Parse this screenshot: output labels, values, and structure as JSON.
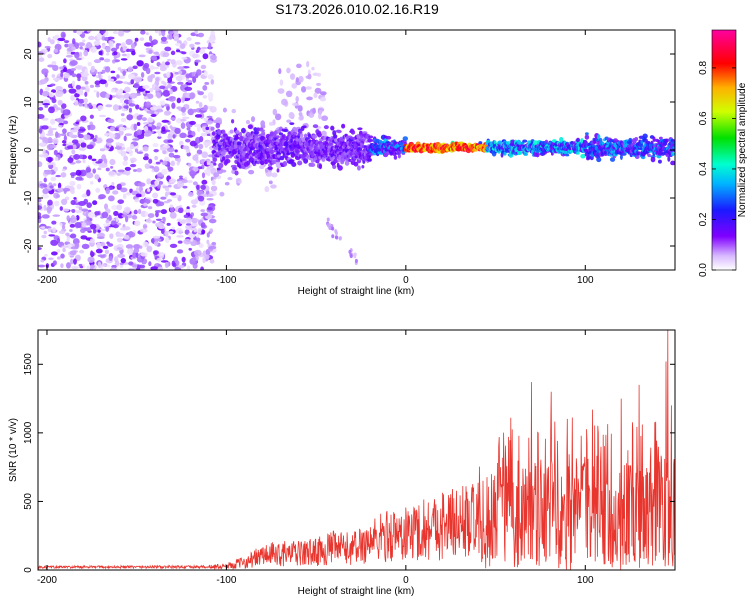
{
  "title": "S173.2026.010.02.16.R19",
  "chart_data": [
    {
      "type": "heatmap",
      "xlabel": "Height of straight line (km)",
      "ylabel": "Frequency (Hz)",
      "xlim": [
        -205,
        150
      ],
      "ylim": [
        -25,
        25
      ],
      "xticks": [
        -200,
        -100,
        0,
        100
      ],
      "xtick_labels": [
        "-200",
        "-100",
        "0",
        "100"
      ],
      "yticks": [
        20,
        10,
        0,
        -10,
        -20
      ],
      "ytick_labels": [
        "20",
        "10",
        "0",
        "-10",
        "-20"
      ],
      "colorbar": {
        "label": "Normalized spectral amplitude",
        "range": [
          0,
          0.95
        ],
        "ticks": [
          0,
          0.2,
          0.4,
          0.6,
          0.8
        ],
        "tick_labels": [
          "0.0",
          "0.2",
          "0.4",
          "0.6",
          "0.8"
        ],
        "colormap": "rainbow (white-purple-blue-cyan-green-yellow-red-magenta)"
      },
      "features": {
        "noise_region_x": [
          -205,
          -107
        ],
        "band_center_hz": 0.5,
        "peak_region_x": [
          0,
          45
        ],
        "peak_amplitude": 0.85
      },
      "grid": false
    },
    {
      "type": "line",
      "xlabel": "Height of straight line (km)",
      "ylabel": "SNR (10 * v/v)",
      "xlim": [
        -205,
        150
      ],
      "ylim": [
        0,
        1750
      ],
      "xticks": [
        -200,
        -100,
        0,
        100
      ],
      "xtick_labels": [
        "-200",
        "-100",
        "0",
        "100"
      ],
      "yticks": [
        0,
        500,
        1000,
        1500
      ],
      "ytick_labels": [
        "0",
        "500",
        "1000",
        "1500"
      ],
      "series_color": "#e8352e",
      "series": [
        {
          "envelope_x": [
            -205,
            -110,
            -100,
            -90,
            -80,
            -70,
            -60,
            -50,
            -40,
            -30,
            -20,
            -10,
            0,
            10,
            20,
            30,
            40,
            50,
            60,
            70,
            80,
            90,
            100,
            110,
            120,
            130,
            140,
            150
          ],
          "envelope_y": [
            25,
            30,
            40,
            80,
            150,
            170,
            170,
            190,
            230,
            220,
            300,
            360,
            370,
            430,
            470,
            500,
            520,
            600,
            620,
            640,
            620,
            640,
            660,
            640,
            640,
            660,
            700,
            700
          ],
          "peaks": [
            [
              70,
              1370
            ],
            [
              81,
              1300
            ],
            [
              120,
              1250
            ],
            [
              130,
              1350
            ],
            [
              145,
              1520
            ],
            [
              146,
              1750
            ],
            [
              148,
              1200
            ]
          ]
        }
      ],
      "grid": false
    }
  ]
}
